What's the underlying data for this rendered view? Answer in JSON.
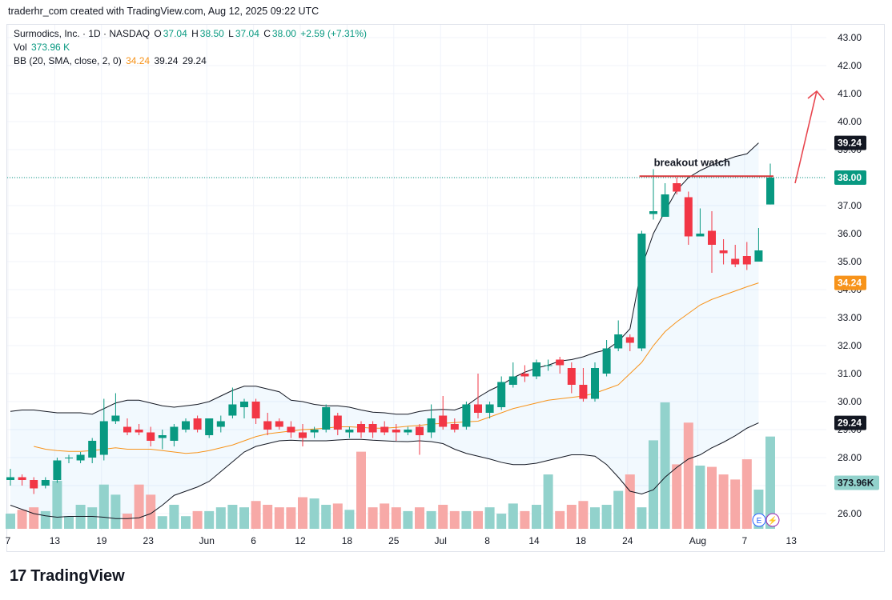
{
  "header": {
    "attribution": "traderhr_com created with TradingView.com, Aug 12, 2025 09:22 UTC"
  },
  "legend": {
    "symbol_line": "Surmodics, Inc. · 1D · NASDAQ",
    "o_label": "O",
    "o_value": "37.04",
    "h_label": "H",
    "h_value": "38.50",
    "l_label": "L",
    "l_value": "37.04",
    "c_label": "C",
    "c_value": "38.00",
    "change": "+2.59 (+7.31%)",
    "vol_label": "Vol",
    "vol_value": "373.96 K",
    "bb_label": "BB (20, SMA, close, 2, 0)",
    "bb_basis": "34.24",
    "bb_upper": "39.24",
    "bb_lower": "29.24"
  },
  "footer": {
    "logo_text": "TradingView"
  },
  "colors": {
    "up": "#089981",
    "down": "#f23645",
    "vol_up": "#92d2cc",
    "vol_down": "#f7a9a7",
    "bb_basis": "#f7931a",
    "bb_band": "#131722",
    "bb_fill": "#2196f3",
    "arrow": "#e8464f",
    "resistance": "#d8393c"
  },
  "chart_data": {
    "type": "candlestick",
    "title": "Surmodics, Inc. · 1D · NASDAQ",
    "ylim": [
      25.6,
      43.2
    ],
    "y_ticks": [
      "26.00",
      "27.00",
      "28.00",
      "29.00",
      "30.00",
      "31.00",
      "32.00",
      "33.00",
      "34.00",
      "35.00",
      "36.00",
      "37.00",
      "38.00",
      "39.00",
      "40.00",
      "41.00",
      "42.00",
      "43.00"
    ],
    "x_ticks": [
      {
        "i": 0,
        "label": "7"
      },
      {
        "i": 4,
        "label": "13"
      },
      {
        "i": 8,
        "label": "19"
      },
      {
        "i": 12,
        "label": "23"
      },
      {
        "i": 17,
        "label": "Jun"
      },
      {
        "i": 21,
        "label": "6"
      },
      {
        "i": 25,
        "label": "12"
      },
      {
        "i": 29,
        "label": "18"
      },
      {
        "i": 33,
        "label": "25"
      },
      {
        "i": 37,
        "label": "Jul"
      },
      {
        "i": 41,
        "label": "8"
      },
      {
        "i": 45,
        "label": "14"
      },
      {
        "i": 49,
        "label": "18"
      },
      {
        "i": 53,
        "label": "24"
      },
      {
        "i": 59,
        "label": "Aug"
      },
      {
        "i": 63,
        "label": "7"
      },
      {
        "i": 67,
        "label": "13"
      }
    ],
    "x_slots": 69,
    "candles": [
      {
        "o": 27.2,
        "h": 27.6,
        "l": 27.0,
        "c": 27.3
      },
      {
        "o": 27.3,
        "h": 27.4,
        "l": 27.0,
        "c": 27.2
      },
      {
        "o": 27.2,
        "h": 27.3,
        "l": 26.7,
        "c": 26.9
      },
      {
        "o": 27.0,
        "h": 27.3,
        "l": 26.9,
        "c": 27.2
      },
      {
        "o": 27.2,
        "h": 28.0,
        "l": 27.1,
        "c": 27.9
      },
      {
        "o": 28.0,
        "h": 28.1,
        "l": 27.8,
        "c": 28.0
      },
      {
        "o": 27.9,
        "h": 28.2,
        "l": 27.8,
        "c": 28.1
      },
      {
        "o": 28.0,
        "h": 28.7,
        "l": 27.8,
        "c": 28.6
      },
      {
        "o": 28.1,
        "h": 30.1,
        "l": 27.9,
        "c": 29.3
      },
      {
        "o": 29.3,
        "h": 30.3,
        "l": 29.2,
        "c": 29.5
      },
      {
        "o": 29.1,
        "h": 29.4,
        "l": 28.8,
        "c": 28.9
      },
      {
        "o": 29.0,
        "h": 29.2,
        "l": 28.8,
        "c": 28.9
      },
      {
        "o": 28.9,
        "h": 29.1,
        "l": 28.4,
        "c": 28.6
      },
      {
        "o": 28.7,
        "h": 29.0,
        "l": 28.3,
        "c": 28.8
      },
      {
        "o": 28.6,
        "h": 29.2,
        "l": 28.4,
        "c": 29.1
      },
      {
        "o": 29.0,
        "h": 29.4,
        "l": 28.9,
        "c": 29.3
      },
      {
        "o": 29.4,
        "h": 29.5,
        "l": 28.9,
        "c": 29.0
      },
      {
        "o": 28.8,
        "h": 29.4,
        "l": 28.7,
        "c": 29.4
      },
      {
        "o": 29.1,
        "h": 29.5,
        "l": 28.9,
        "c": 29.3
      },
      {
        "o": 29.5,
        "h": 30.5,
        "l": 29.4,
        "c": 29.9
      },
      {
        "o": 29.8,
        "h": 30.1,
        "l": 29.4,
        "c": 30.0
      },
      {
        "o": 30.0,
        "h": 30.1,
        "l": 29.2,
        "c": 29.4
      },
      {
        "o": 29.3,
        "h": 29.6,
        "l": 28.8,
        "c": 29.0
      },
      {
        "o": 29.3,
        "h": 29.4,
        "l": 29.0,
        "c": 29.1
      },
      {
        "o": 29.1,
        "h": 29.3,
        "l": 28.7,
        "c": 28.9
      },
      {
        "o": 28.9,
        "h": 29.2,
        "l": 28.4,
        "c": 28.7
      },
      {
        "o": 28.9,
        "h": 29.1,
        "l": 28.7,
        "c": 29.0
      },
      {
        "o": 29.0,
        "h": 29.9,
        "l": 28.9,
        "c": 29.8
      },
      {
        "o": 29.5,
        "h": 29.6,
        "l": 28.8,
        "c": 29.0
      },
      {
        "o": 28.9,
        "h": 29.1,
        "l": 28.7,
        "c": 29.0
      },
      {
        "o": 29.2,
        "h": 29.3,
        "l": 28.7,
        "c": 28.9
      },
      {
        "o": 29.2,
        "h": 29.3,
        "l": 28.7,
        "c": 28.9
      },
      {
        "o": 29.1,
        "h": 29.3,
        "l": 28.8,
        "c": 28.9
      },
      {
        "o": 29.0,
        "h": 29.2,
        "l": 28.6,
        "c": 28.9
      },
      {
        "o": 28.9,
        "h": 29.1,
        "l": 28.8,
        "c": 29.0
      },
      {
        "o": 29.1,
        "h": 29.2,
        "l": 28.1,
        "c": 28.8
      },
      {
        "o": 28.9,
        "h": 29.9,
        "l": 28.7,
        "c": 29.4
      },
      {
        "o": 29.5,
        "h": 30.2,
        "l": 29.0,
        "c": 29.1
      },
      {
        "o": 29.2,
        "h": 29.4,
        "l": 28.9,
        "c": 29.0
      },
      {
        "o": 29.1,
        "h": 30.0,
        "l": 29.0,
        "c": 29.9
      },
      {
        "o": 29.9,
        "h": 31.0,
        "l": 29.4,
        "c": 29.6
      },
      {
        "o": 29.6,
        "h": 30.0,
        "l": 29.4,
        "c": 29.9
      },
      {
        "o": 29.8,
        "h": 30.9,
        "l": 29.7,
        "c": 30.7
      },
      {
        "o": 30.6,
        "h": 31.4,
        "l": 30.5,
        "c": 30.9
      },
      {
        "o": 31.0,
        "h": 31.3,
        "l": 30.7,
        "c": 30.9
      },
      {
        "o": 30.9,
        "h": 31.5,
        "l": 30.8,
        "c": 31.4
      },
      {
        "o": 31.3,
        "h": 31.5,
        "l": 31.1,
        "c": 31.3
      },
      {
        "o": 31.5,
        "h": 31.6,
        "l": 31.0,
        "c": 31.3
      },
      {
        "o": 31.2,
        "h": 31.4,
        "l": 30.3,
        "c": 30.6
      },
      {
        "o": 30.6,
        "h": 31.2,
        "l": 30.0,
        "c": 30.1
      },
      {
        "o": 30.1,
        "h": 31.4,
        "l": 30.0,
        "c": 31.2
      },
      {
        "o": 31.0,
        "h": 32.2,
        "l": 30.9,
        "c": 31.9
      },
      {
        "o": 31.9,
        "h": 32.9,
        "l": 31.8,
        "c": 32.4
      },
      {
        "o": 32.3,
        "h": 32.4,
        "l": 31.8,
        "c": 32.1
      },
      {
        "o": 31.9,
        "h": 36.1,
        "l": 31.8,
        "c": 36.0
      },
      {
        "o": 36.7,
        "h": 38.3,
        "l": 36.5,
        "c": 36.8
      },
      {
        "o": 36.6,
        "h": 37.8,
        "l": 36.6,
        "c": 37.4
      },
      {
        "o": 37.8,
        "h": 38.0,
        "l": 37.4,
        "c": 37.5
      },
      {
        "o": 37.3,
        "h": 37.5,
        "l": 35.6,
        "c": 35.9
      },
      {
        "o": 35.9,
        "h": 36.9,
        "l": 35.9,
        "c": 36.0
      },
      {
        "o": 36.1,
        "h": 36.8,
        "l": 34.6,
        "c": 35.6
      },
      {
        "o": 35.4,
        "h": 35.8,
        "l": 34.9,
        "c": 35.3
      },
      {
        "o": 35.1,
        "h": 35.6,
        "l": 34.8,
        "c": 34.9
      },
      {
        "o": 35.2,
        "h": 35.7,
        "l": 34.7,
        "c": 34.9
      },
      {
        "o": 35.0,
        "h": 36.2,
        "l": 35.0,
        "c": 35.4
      },
      {
        "o": 37.04,
        "h": 38.5,
        "l": 37.04,
        "c": 38.0
      }
    ],
    "volume_rel": [
      0.12,
      0.15,
      0.17,
      0.14,
      0.38,
      0.1,
      0.19,
      0.17,
      0.35,
      0.27,
      0.12,
      0.35,
      0.27,
      0.1,
      0.19,
      0.1,
      0.14,
      0.14,
      0.17,
      0.19,
      0.17,
      0.22,
      0.19,
      0.17,
      0.17,
      0.25,
      0.24,
      0.19,
      0.2,
      0.15,
      0.61,
      0.17,
      0.2,
      0.17,
      0.14,
      0.17,
      0.14,
      0.19,
      0.14,
      0.14,
      0.14,
      0.17,
      0.12,
      0.2,
      0.14,
      0.19,
      0.43,
      0.14,
      0.19,
      0.22,
      0.17,
      0.19,
      0.3,
      0.43,
      0.17,
      0.7,
      1.0,
      0.51,
      0.84,
      0.5,
      0.49,
      0.43,
      0.39,
      0.55,
      0.31,
      0.73
    ],
    "bb_upper": [
      29.65,
      29.7,
      29.7,
      29.65,
      29.6,
      29.6,
      29.6,
      29.55,
      29.75,
      29.95,
      30.05,
      30.05,
      29.95,
      29.85,
      29.8,
      29.85,
      29.9,
      30.0,
      30.2,
      30.4,
      30.55,
      30.55,
      30.45,
      30.35,
      30.05,
      30.0,
      29.9,
      29.85,
      29.85,
      29.8,
      29.7,
      29.62,
      29.6,
      29.55,
      29.55,
      29.65,
      29.7,
      29.72,
      29.7,
      29.85,
      30.15,
      30.4,
      30.6,
      30.85,
      31.05,
      31.2,
      31.3,
      31.45,
      31.5,
      31.6,
      31.75,
      31.85,
      32.15,
      32.6,
      34.8,
      36.0,
      36.8,
      37.55,
      38.0,
      38.25,
      38.45,
      38.6,
      38.75,
      38.85,
      39.24
    ],
    "bb_lower": [
      26.3,
      26.15,
      26.0,
      25.92,
      25.87,
      25.9,
      25.9,
      25.9,
      25.87,
      25.82,
      25.82,
      25.85,
      26.0,
      26.3,
      26.65,
      26.8,
      26.95,
      27.15,
      27.5,
      27.85,
      28.2,
      28.4,
      28.5,
      28.6,
      28.62,
      28.6,
      28.6,
      28.6,
      28.63,
      28.65,
      28.65,
      28.62,
      28.6,
      28.58,
      28.57,
      28.6,
      28.57,
      28.5,
      28.3,
      28.15,
      28.05,
      27.95,
      27.83,
      27.75,
      27.75,
      27.8,
      27.9,
      28.0,
      28.1,
      28.1,
      28.05,
      27.75,
      27.3,
      26.8,
      26.7,
      26.85,
      27.3,
      27.65,
      27.95,
      28.1,
      28.35,
      28.55,
      28.78,
      29.05,
      29.24
    ],
    "bb_basis": [
      28.4,
      28.3,
      28.25,
      28.22,
      28.22,
      28.25,
      28.3,
      28.35,
      28.3,
      28.3,
      28.3,
      28.25,
      28.2,
      28.15,
      28.18,
      28.25,
      28.35,
      28.45,
      28.6,
      28.75,
      28.85,
      28.9,
      28.95,
      29.0,
      29.02,
      29.05,
      29.1,
      29.1,
      29.08,
      29.05,
      29.05,
      29.08,
      29.12,
      29.15,
      29.2,
      29.22,
      29.25,
      29.28,
      29.3,
      29.45,
      29.6,
      29.75,
      29.85,
      29.95,
      30.05,
      30.1,
      30.15,
      30.2,
      30.3,
      30.45,
      30.6,
      31.0,
      31.4,
      32.0,
      32.5,
      32.85,
      33.15,
      33.45,
      33.65,
      33.8,
      33.95,
      34.1,
      34.24
    ],
    "bb_basis_start": 2,
    "price_tags": [
      {
        "value": 39.24,
        "label": "39.24",
        "kind": "upper"
      },
      {
        "value": 38.0,
        "label": "38.00",
        "kind": "close"
      },
      {
        "value": 34.24,
        "label": "34.24",
        "kind": "basis"
      },
      {
        "value": 29.24,
        "label": "29.24",
        "kind": "lower"
      },
      {
        "value": 27.1,
        "label": "373.96K",
        "kind": "volume"
      }
    ],
    "annotations": {
      "resistance": {
        "price": 38.05,
        "from_i": 56,
        "to_i": 65
      },
      "breakout_label": "breakout watch",
      "arrow": {
        "from_price": 37.8,
        "to_price": 41.0
      }
    },
    "last_close": 38.0
  }
}
